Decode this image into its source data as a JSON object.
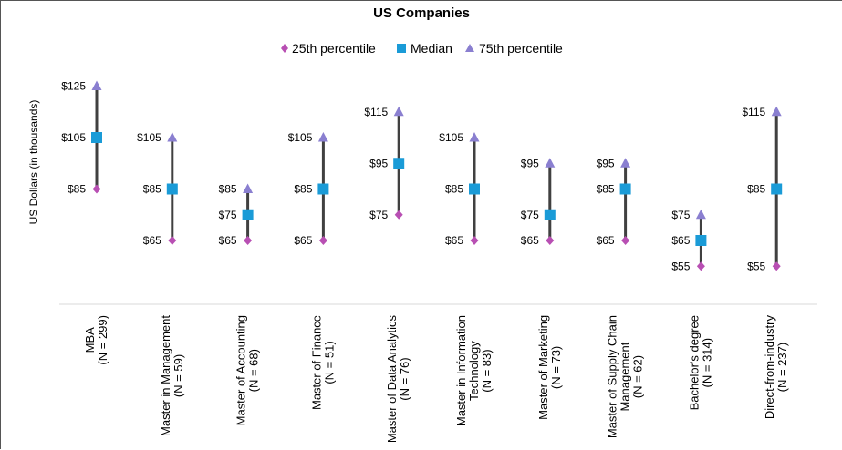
{
  "chart_data": {
    "type": "range",
    "title": "US Companies",
    "ylabel": "US Dollars (in thousands)",
    "ylim": [
      45,
      130
    ],
    "legend_position": "top",
    "series": [
      {
        "name": "25th percentile",
        "marker": "diamond",
        "color": "#b84fb3"
      },
      {
        "name": "Median",
        "marker": "square",
        "color": "#1a9bd7"
      },
      {
        "name": "75th percentile",
        "marker": "triangle",
        "color": "#8a7fd0"
      }
    ],
    "categories": [
      {
        "lines": [
          "MBA",
          "(N = 299)"
        ],
        "p25": 85,
        "median": 105,
        "p75": 125,
        "labels": {
          "p25": "$85",
          "median": "$105",
          "p75": "$125"
        }
      },
      {
        "lines": [
          "Master in Management",
          "(N = 59)"
        ],
        "p25": 65,
        "median": 85,
        "p75": 105,
        "labels": {
          "p25": "$65",
          "median": "$85",
          "p75": "$105"
        }
      },
      {
        "lines": [
          "Master of Accounting",
          "(N = 68)"
        ],
        "p25": 65,
        "median": 75,
        "p75": 85,
        "labels": {
          "p25": "$65",
          "median": "$75",
          "p75": "$85"
        }
      },
      {
        "lines": [
          "Master of Finance",
          "(N = 51)"
        ],
        "p25": 65,
        "median": 85,
        "p75": 105,
        "labels": {
          "p25": "$65",
          "median": "$85",
          "p75": "$105"
        }
      },
      {
        "lines": [
          "Master of Data Analytics",
          "(N = 76)"
        ],
        "p25": 75,
        "median": 95,
        "p75": 115,
        "labels": {
          "p25": "$75",
          "median": "$95",
          "p75": "$115"
        }
      },
      {
        "lines": [
          "Master in Information",
          "Technology",
          "(N = 83)"
        ],
        "p25": 65,
        "median": 85,
        "p75": 105,
        "labels": {
          "p25": "$65",
          "median": "$85",
          "p75": "$105"
        }
      },
      {
        "lines": [
          "Master of Marketing",
          "(N = 73)"
        ],
        "p25": 65,
        "median": 75,
        "p75": 95,
        "labels": {
          "p25": "$65",
          "median": "$75",
          "p75": "$95"
        }
      },
      {
        "lines": [
          "Master of Supply Chain",
          "Management",
          "(N = 62)"
        ],
        "p25": 65,
        "median": 85,
        "p75": 95,
        "labels": {
          "p25": "$65",
          "median": "$85",
          "p75": "$95"
        }
      },
      {
        "lines": [
          "Bachelor's degree",
          "(N = 314)"
        ],
        "p25": 55,
        "median": 65,
        "p75": 75,
        "labels": {
          "p25": "$55",
          "median": "$65",
          "p75": "$75"
        }
      },
      {
        "lines": [
          "Direct-from-industry",
          "(N = 237)"
        ],
        "p25": 55,
        "median": 85,
        "p75": 115,
        "labels": {
          "p25": "$55",
          "median": "$85",
          "p75": "$115"
        }
      }
    ]
  }
}
